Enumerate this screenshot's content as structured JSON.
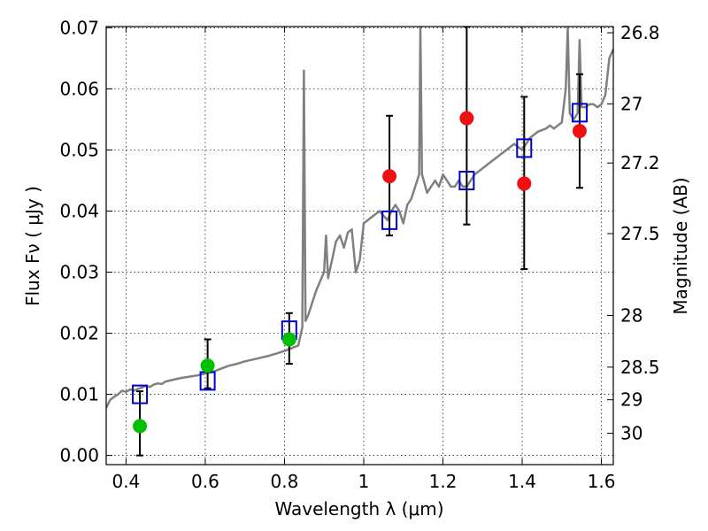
{
  "chart_data": {
    "type": "scatter",
    "xlabel": "Wavelength  λ (μm)",
    "ylabel": "Flux  Fν  ( μJy )",
    "ylabel_right": "Magnitude (AB)",
    "xlim": [
      0.35,
      1.63
    ],
    "ylim": [
      -0.0015,
      0.0702
    ],
    "grid": true,
    "x_ticks": [
      {
        "value": 0.4,
        "label": "0.4"
      },
      {
        "value": 0.6,
        "label": "0.6"
      },
      {
        "value": 0.8,
        "label": "0.8"
      },
      {
        "value": 1.0,
        "label": "1"
      },
      {
        "value": 1.2,
        "label": "1.2"
      },
      {
        "value": 1.4,
        "label": "1.4"
      },
      {
        "value": 1.6,
        "label": "1.6"
      }
    ],
    "y_ticks": [
      {
        "value": 0.0,
        "label": "0.00"
      },
      {
        "value": 0.01,
        "label": "0.01"
      },
      {
        "value": 0.02,
        "label": "0.02"
      },
      {
        "value": 0.03,
        "label": "0.03"
      },
      {
        "value": 0.04,
        "label": "0.04"
      },
      {
        "value": 0.05,
        "label": "0.05"
      },
      {
        "value": 0.06,
        "label": "0.06"
      },
      {
        "value": 0.07,
        "label": "0.07"
      }
    ],
    "right_ticks": [
      {
        "mag": 26.8,
        "label": "26.8"
      },
      {
        "mag": 27.0,
        "label": "27"
      },
      {
        "mag": 27.2,
        "label": "27.2"
      },
      {
        "mag": 27.5,
        "label": "27.5"
      },
      {
        "mag": 28.0,
        "label": "28"
      },
      {
        "mag": 28.5,
        "label": "28.5"
      },
      {
        "mag": 29.0,
        "label": "29"
      },
      {
        "mag": 30.0,
        "label": "30"
      }
    ],
    "colors": {
      "spectrum": "#808080",
      "model": "#0000cc",
      "detected": "#00c000",
      "nir": "#ee1111",
      "errorbar": "#000000"
    },
    "spectrum": [
      [
        0.35,
        0.0078
      ],
      [
        0.36,
        0.0091
      ],
      [
        0.37,
        0.0096
      ],
      [
        0.38,
        0.01
      ],
      [
        0.39,
        0.0106
      ],
      [
        0.4,
        0.0104
      ],
      [
        0.41,
        0.0108
      ],
      [
        0.42,
        0.0106
      ],
      [
        0.43,
        0.0109
      ],
      [
        0.44,
        0.0111
      ],
      [
        0.45,
        0.0114
      ],
      [
        0.46,
        0.0112
      ],
      [
        0.47,
        0.0116
      ],
      [
        0.48,
        0.0118
      ],
      [
        0.49,
        0.0117
      ],
      [
        0.5,
        0.0121
      ],
      [
        0.52,
        0.0124
      ],
      [
        0.54,
        0.0127
      ],
      [
        0.56,
        0.0129
      ],
      [
        0.58,
        0.0131
      ],
      [
        0.6,
        0.0134
      ],
      [
        0.62,
        0.0137
      ],
      [
        0.64,
        0.0142
      ],
      [
        0.66,
        0.0147
      ],
      [
        0.68,
        0.015
      ],
      [
        0.7,
        0.0154
      ],
      [
        0.72,
        0.0157
      ],
      [
        0.74,
        0.016
      ],
      [
        0.76,
        0.0163
      ],
      [
        0.78,
        0.0167
      ],
      [
        0.8,
        0.0171
      ],
      [
        0.82,
        0.0176
      ],
      [
        0.835,
        0.018
      ],
      [
        0.845,
        0.021
      ],
      [
        0.849,
        0.063
      ],
      [
        0.853,
        0.022
      ],
      [
        0.86,
        0.023
      ],
      [
        0.87,
        0.025
      ],
      [
        0.88,
        0.027
      ],
      [
        0.89,
        0.0285
      ],
      [
        0.9,
        0.03
      ],
      [
        0.905,
        0.036
      ],
      [
        0.91,
        0.029
      ],
      [
        0.92,
        0.032
      ],
      [
        0.93,
        0.035
      ],
      [
        0.94,
        0.036
      ],
      [
        0.95,
        0.034
      ],
      [
        0.96,
        0.0365
      ],
      [
        0.97,
        0.037
      ],
      [
        0.98,
        0.03
      ],
      [
        0.99,
        0.032
      ],
      [
        1.0,
        0.038
      ],
      [
        1.02,
        0.039
      ],
      [
        1.04,
        0.04
      ],
      [
        1.06,
        0.0385
      ],
      [
        1.07,
        0.04
      ],
      [
        1.08,
        0.041
      ],
      [
        1.09,
        0.04
      ],
      [
        1.1,
        0.038
      ],
      [
        1.11,
        0.041
      ],
      [
        1.12,
        0.042
      ],
      [
        1.13,
        0.044
      ],
      [
        1.14,
        0.046
      ],
      [
        1.143,
        0.07
      ],
      [
        1.147,
        0.046
      ],
      [
        1.16,
        0.043
      ],
      [
        1.17,
        0.044
      ],
      [
        1.18,
        0.045
      ],
      [
        1.19,
        0.044
      ],
      [
        1.2,
        0.046
      ],
      [
        1.22,
        0.044
      ],
      [
        1.23,
        0.044
      ],
      [
        1.24,
        0.045
      ],
      [
        1.25,
        0.044
      ],
      [
        1.26,
        0.044
      ],
      [
        1.27,
        0.045
      ],
      [
        1.28,
        0.046
      ],
      [
        1.3,
        0.047
      ],
      [
        1.32,
        0.048
      ],
      [
        1.34,
        0.049
      ],
      [
        1.36,
        0.05
      ],
      [
        1.38,
        0.051
      ],
      [
        1.4,
        0.05
      ],
      [
        1.42,
        0.052
      ],
      [
        1.44,
        0.053
      ],
      [
        1.46,
        0.0535
      ],
      [
        1.47,
        0.054
      ],
      [
        1.48,
        0.0535
      ],
      [
        1.49,
        0.054
      ],
      [
        1.5,
        0.0545
      ],
      [
        1.51,
        0.06
      ],
      [
        1.515,
        0.07
      ],
      [
        1.52,
        0.056
      ],
      [
        1.53,
        0.055
      ],
      [
        1.54,
        0.056
      ],
      [
        1.545,
        0.068
      ],
      [
        1.55,
        0.057
      ],
      [
        1.56,
        0.057
      ],
      [
        1.57,
        0.0575
      ],
      [
        1.58,
        0.0575
      ],
      [
        1.59,
        0.057
      ],
      [
        1.6,
        0.0575
      ],
      [
        1.61,
        0.059
      ],
      [
        1.62,
        0.065
      ],
      [
        1.63,
        0.0665
      ]
    ],
    "model_points": [
      {
        "x": 0.435,
        "y": 0.01
      },
      {
        "x": 0.606,
        "y": 0.0122
      },
      {
        "x": 0.812,
        "y": 0.0205
      },
      {
        "x": 1.065,
        "y": 0.0385
      },
      {
        "x": 1.26,
        "y": 0.045
      },
      {
        "x": 1.405,
        "y": 0.0503
      },
      {
        "x": 1.545,
        "y": 0.0561
      }
    ],
    "detected_points": [
      {
        "x": 0.435,
        "y": 0.0048,
        "err_low": 0.0,
        "err_high": 0.0105
      },
      {
        "x": 0.606,
        "y": 0.0147,
        "err_low": 0.011,
        "err_high": 0.019
      },
      {
        "x": 0.812,
        "y": 0.019,
        "err_low": 0.015,
        "err_high": 0.0233
      }
    ],
    "nir_points": [
      {
        "x": 1.065,
        "y": 0.0457,
        "err_low": 0.036,
        "err_high": 0.0556
      },
      {
        "x": 1.26,
        "y": 0.0552,
        "err_low": 0.0378,
        "err_high": 0.0702
      },
      {
        "x": 1.405,
        "y": 0.0445,
        "err_low": 0.0305,
        "err_high": 0.0587
      },
      {
        "x": 1.545,
        "y": 0.0531,
        "err_low": 0.0438,
        "err_high": 0.0624
      }
    ]
  }
}
